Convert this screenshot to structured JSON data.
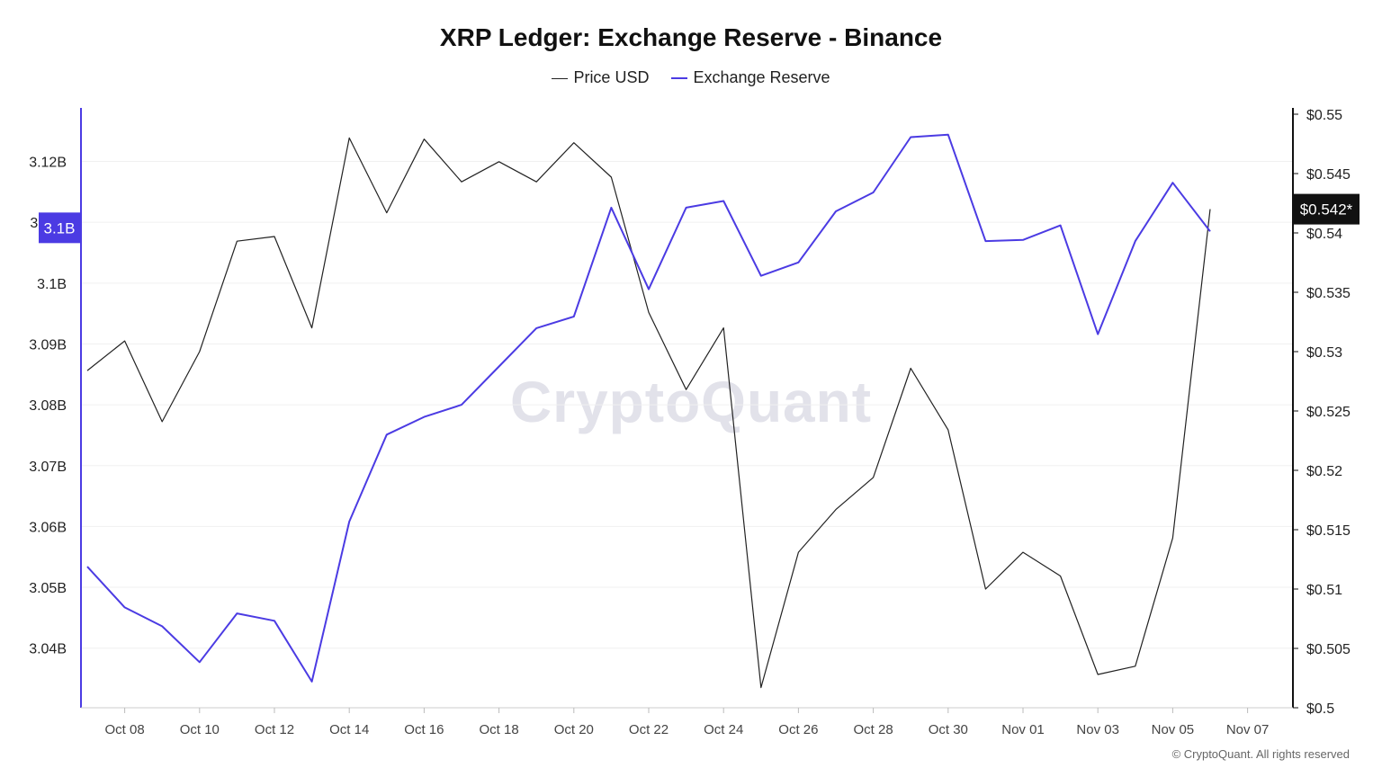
{
  "chart_data": {
    "type": "line",
    "title": "XRP Ledger: Exchange Reserve - Binance",
    "x": [
      "Oct 07",
      "Oct 08",
      "Oct 09",
      "Oct 10",
      "Oct 11",
      "Oct 12",
      "Oct 13",
      "Oct 14",
      "Oct 15",
      "Oct 16",
      "Oct 17",
      "Oct 18",
      "Oct 19",
      "Oct 20",
      "Oct 21",
      "Oct 22",
      "Oct 23",
      "Oct 24",
      "Oct 25",
      "Oct 26",
      "Oct 27",
      "Oct 28",
      "Oct 29",
      "Oct 30",
      "Oct 31",
      "Nov 01",
      "Nov 02",
      "Nov 03",
      "Nov 04",
      "Nov 05",
      "Nov 06"
    ],
    "x_tick_labels": [
      "Oct 08",
      "Oct 10",
      "Oct 12",
      "Oct 14",
      "Oct 16",
      "Oct 18",
      "Oct 20",
      "Oct 22",
      "Oct 24",
      "Oct 26",
      "Oct 28",
      "Oct 30",
      "Nov 01",
      "Nov 03",
      "Nov 05",
      "Nov 07"
    ],
    "series": [
      {
        "name": "Price USD",
        "axis": "right",
        "color": "#222222",
        "values": [
          0.5284,
          0.5309,
          0.5241,
          0.53,
          0.5393,
          0.5397,
          0.532,
          0.548,
          0.5417,
          0.5479,
          0.5443,
          0.546,
          0.5443,
          0.5476,
          0.5447,
          0.5333,
          0.5268,
          0.532,
          0.5017,
          0.5131,
          0.5167,
          0.5194,
          0.5286,
          0.5234,
          0.51,
          0.5131,
          0.5111,
          0.5028,
          0.5035,
          0.5143,
          0.542
        ]
      },
      {
        "name": "Exchange Reserve",
        "axis": "left",
        "color": "#4b3be3",
        "values": [
          3.0534,
          3.0467,
          3.0436,
          3.0377,
          3.0457,
          3.0445,
          3.0345,
          3.0608,
          3.0751,
          3.078,
          3.08,
          3.0863,
          3.0926,
          3.0945,
          3.1124,
          3.099,
          3.1124,
          3.1135,
          3.1012,
          3.1034,
          3.1118,
          3.1149,
          3.124,
          3.1244,
          3.1069,
          3.1071,
          3.1095,
          3.0916,
          3.1069,
          3.1165,
          3.1085
        ]
      }
    ],
    "y_left": {
      "ticks": [
        3.04,
        3.05,
        3.06,
        3.07,
        3.08,
        3.09,
        3.1,
        3.11,
        3.12
      ],
      "tick_labels": [
        "3.04B",
        "3.05B",
        "3.06B",
        "3.07B",
        "3.08B",
        "3.09B",
        "3.1B",
        "3.11B",
        "3.12B"
      ],
      "range": [
        3.0302,
        3.1288
      ]
    },
    "y_right": {
      "ticks": [
        0.5,
        0.505,
        0.51,
        0.515,
        0.52,
        0.525,
        0.53,
        0.535,
        0.54,
        0.545,
        0.55
      ],
      "tick_labels": [
        "$0.5",
        "$0.505",
        "$0.51",
        "$0.515",
        "$0.52",
        "$0.525",
        "$0.53",
        "$0.535",
        "$0.54",
        "$0.545",
        "$0.55"
      ],
      "range": [
        0.5,
        0.55
      ]
    },
    "current_left_label": "3.1B",
    "current_right_label": "$0.542*",
    "grid": "horizontal",
    "legend_position": "top-center"
  },
  "watermark": "CryptoQuant",
  "copyright": "© CryptoQuant. All rights reserved"
}
